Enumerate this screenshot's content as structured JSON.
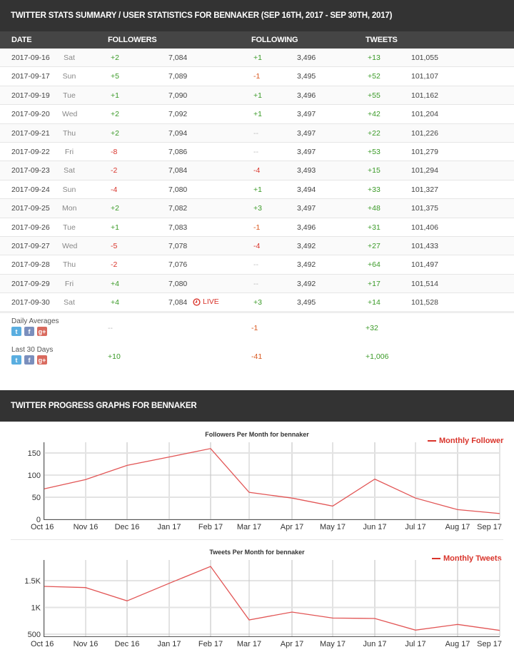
{
  "summary_header": "TWITTER STATS SUMMARY / USER STATISTICS FOR BENNAKER (SEP 16TH, 2017 - SEP 30TH, 2017)",
  "columns": {
    "date": "DATE",
    "followers": "FOLLOWERS",
    "following": "FOLLOWING",
    "tweets": "TWEETS"
  },
  "rows": [
    {
      "date": "2017-09-16",
      "day": "Sat",
      "followers_delta": "+2",
      "followers": "7,084",
      "following_delta": "+1",
      "following": "3,496",
      "tweets_delta": "+13",
      "tweets": "101,055"
    },
    {
      "date": "2017-09-17",
      "day": "Sun",
      "followers_delta": "+5",
      "followers": "7,089",
      "following_delta": "-1",
      "following": "3,495",
      "tweets_delta": "+52",
      "tweets": "101,107"
    },
    {
      "date": "2017-09-19",
      "day": "Tue",
      "followers_delta": "+1",
      "followers": "7,090",
      "following_delta": "+1",
      "following": "3,496",
      "tweets_delta": "+55",
      "tweets": "101,162"
    },
    {
      "date": "2017-09-20",
      "day": "Wed",
      "followers_delta": "+2",
      "followers": "7,092",
      "following_delta": "+1",
      "following": "3,497",
      "tweets_delta": "+42",
      "tweets": "101,204"
    },
    {
      "date": "2017-09-21",
      "day": "Thu",
      "followers_delta": "+2",
      "followers": "7,094",
      "following_delta": "--",
      "following": "3,497",
      "tweets_delta": "+22",
      "tweets": "101,226"
    },
    {
      "date": "2017-09-22",
      "day": "Fri",
      "followers_delta": "-8",
      "followers": "7,086",
      "following_delta": "--",
      "following": "3,497",
      "tweets_delta": "+53",
      "tweets": "101,279"
    },
    {
      "date": "2017-09-23",
      "day": "Sat",
      "followers_delta": "-2",
      "followers": "7,084",
      "following_delta": "-4",
      "following": "3,493",
      "tweets_delta": "+15",
      "tweets": "101,294"
    },
    {
      "date": "2017-09-24",
      "day": "Sun",
      "followers_delta": "-4",
      "followers": "7,080",
      "following_delta": "+1",
      "following": "3,494",
      "tweets_delta": "+33",
      "tweets": "101,327"
    },
    {
      "date": "2017-09-25",
      "day": "Mon",
      "followers_delta": "+2",
      "followers": "7,082",
      "following_delta": "+3",
      "following": "3,497",
      "tweets_delta": "+48",
      "tweets": "101,375"
    },
    {
      "date": "2017-09-26",
      "day": "Tue",
      "followers_delta": "+1",
      "followers": "7,083",
      "following_delta": "-1",
      "following": "3,496",
      "tweets_delta": "+31",
      "tweets": "101,406"
    },
    {
      "date": "2017-09-27",
      "day": "Wed",
      "followers_delta": "-5",
      "followers": "7,078",
      "following_delta": "-4",
      "following": "3,492",
      "tweets_delta": "+27",
      "tweets": "101,433"
    },
    {
      "date": "2017-09-28",
      "day": "Thu",
      "followers_delta": "-2",
      "followers": "7,076",
      "following_delta": "--",
      "following": "3,492",
      "tweets_delta": "+64",
      "tweets": "101,497"
    },
    {
      "date": "2017-09-29",
      "day": "Fri",
      "followers_delta": "+4",
      "followers": "7,080",
      "following_delta": "--",
      "following": "3,492",
      "tweets_delta": "+17",
      "tweets": "101,514"
    },
    {
      "date": "2017-09-30",
      "day": "Sat",
      "followers_delta": "+4",
      "followers": "7,084",
      "live": "LIVE",
      "following_delta": "+3",
      "following": "3,495",
      "tweets_delta": "+14",
      "tweets": "101,528"
    }
  ],
  "summary": [
    {
      "label": "Daily Averages",
      "followers": "--",
      "following": "-1",
      "tweets": "+32"
    },
    {
      "label": "Last 30 Days",
      "followers": "+10",
      "following": "-41",
      "tweets": "+1,006"
    }
  ],
  "share_icons": {
    "twitter": "t",
    "facebook": "f",
    "google": "g+"
  },
  "graphs_header": "TWITTER PROGRESS GRAPHS FOR BENNAKER",
  "colors": {
    "accent": "#d9342b",
    "positive": "#3a9a27",
    "negative": "#d9342b",
    "header_bg": "#333333",
    "subheader_bg": "#454545"
  },
  "chart_data": [
    {
      "type": "line",
      "title": "Followers Per Month for bennaker",
      "legend": "Monthly Follower",
      "legend_position": "top-right",
      "categories": [
        "Oct 16",
        "Nov 16",
        "Dec 16",
        "Jan 17",
        "Feb 17",
        "Mar 17",
        "Apr 17",
        "May 17",
        "Jun 17",
        "Jul 17",
        "Aug 17",
        "Sep 17"
      ],
      "series": [
        {
          "name": "Monthly Follower",
          "values": [
            69,
            90,
            122,
            141,
            160,
            61,
            48,
            30,
            91,
            48,
            22,
            13
          ]
        }
      ],
      "yticks": [
        "0",
        "50",
        "100",
        "150"
      ],
      "ylim": [
        0,
        175
      ],
      "grid": true,
      "xlabel": "",
      "ylabel": ""
    },
    {
      "type": "line",
      "title": "Tweets Per Month for bennaker",
      "legend": "Monthly Tweets",
      "legend_position": "top-right",
      "categories": [
        "Oct 16",
        "Nov 16",
        "Dec 16",
        "Jan 17",
        "Feb 17",
        "Mar 17",
        "Apr 17",
        "May 17",
        "Jun 17",
        "Jul 17",
        "Aug 17",
        "Sep 17"
      ],
      "series": [
        {
          "name": "Monthly Tweets",
          "values": [
            1393,
            1371,
            1123,
            1451,
            1767,
            767,
            913,
            802,
            793,
            576,
            683,
            571
          ]
        }
      ],
      "yticks": [
        "500",
        "1K",
        "1.5K"
      ],
      "ylim": [
        460,
        1900
      ],
      "grid": true,
      "xlabel": "",
      "ylabel": ""
    }
  ]
}
